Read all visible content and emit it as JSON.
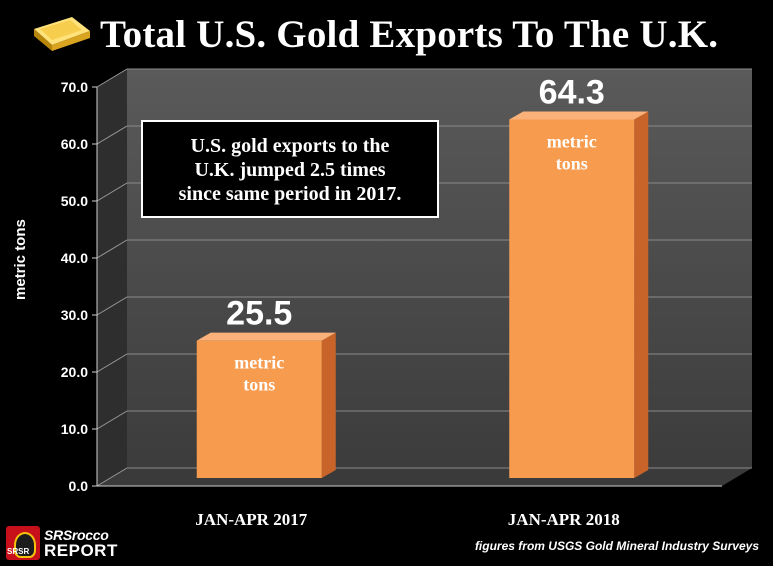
{
  "title": "Total U.S. Gold Exports To The U.K.",
  "annotation": [
    "U.S. gold exports to the",
    "U.K. jumped 2.5 times",
    "since same period in 2017."
  ],
  "source": "figures from USGS Gold Mineral Industry Surveys",
  "logo": {
    "line1": "SRSrocco",
    "line2": "REPORT",
    "badge": "SRSR"
  },
  "colors": {
    "background": "#000000",
    "bar_front": "#F79B4F",
    "bar_side": "#C8642A",
    "plot_back": "#505050",
    "plot_floor": "#3A3A3A"
  },
  "chart_data": {
    "type": "bar",
    "title": "Total U.S. Gold Exports To The U.K.",
    "categories": [
      "JAN-APR 2017",
      "JAN-APR 2018"
    ],
    "values": [
      25.5,
      64.3
    ],
    "value_labels": [
      "25.5",
      "64.3"
    ],
    "value_unit_label": [
      "metric",
      "tons"
    ],
    "ylabel": "metric  tons",
    "xlabel": "",
    "ylim": [
      0,
      70
    ],
    "yticks": [
      "0.0",
      "10.0",
      "20.0",
      "30.0",
      "40.0",
      "50.0",
      "60.0",
      "70.0"
    ],
    "grid": true
  }
}
